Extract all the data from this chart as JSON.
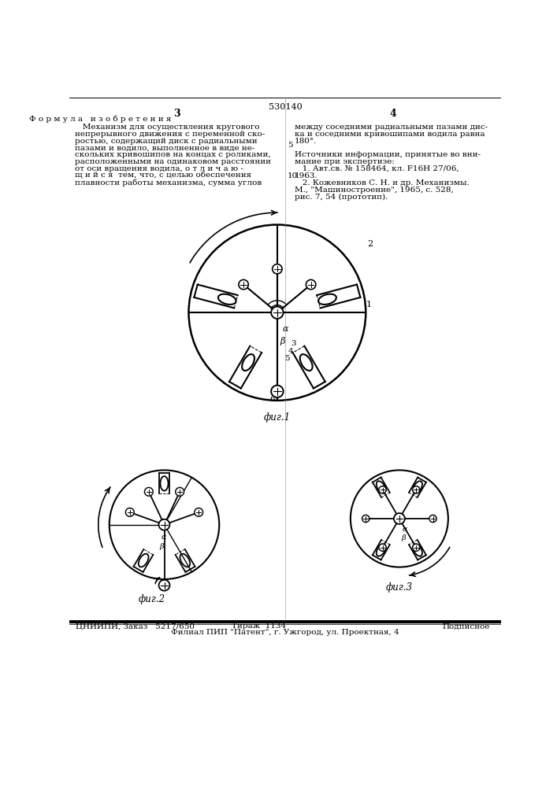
{
  "page_number": "530140",
  "left_page_num": "3",
  "right_page_num": "4",
  "left_header": "Ф о р м у л а   и з о б р е т е н и я",
  "right_body_top_line1": "между соседними радиальными пазами дис-",
  "right_body_top_line2": "ка и соседними кривошипами водила равна",
  "right_body_top_line3": "180°.",
  "right_src_header_line1": "Источники информации, принятые во вни-",
  "right_src_header_line2": "мание при экспертизе:",
  "right_src1_line1": "1. Авт.св. № 158464, кл. F16H 27/06,",
  "right_src1_line2": "1963.",
  "right_src2_line1": "2. Кожевников С. Н. и др. Механизмы.",
  "right_src2_line2": "М., \"Машиностроение\", 1965, с. 528,",
  "right_src2_line3": "рис. 7, 54 (прототип).",
  "left_body_lines": [
    "   Механизм для осуществления кругового",
    "непрерывного движения с переменной ско-",
    "ростью, содержащий диск с радиальными",
    "пазами и водило, выполненное в виде не-",
    "скольких кривошипов на концах с роликами,",
    "расположенными на одинаковом расстоянии",
    "от оси вращения водила, о т л и ч а ю -",
    "щ и й с я  тем, что, с целью обеспечения",
    "плавности работы механизма, сумма углов"
  ],
  "fig1_caption": "фиг.1",
  "fig2_caption": "фиг.2",
  "fig3_caption": "фиг.3",
  "bottom_bar_text1": "ЦНИИПИ, Заказ   5217/650",
  "bottom_bar_text2": "Тираж  1134",
  "bottom_bar_text3": "Подписное",
  "bottom_address": "Филиал ПИП \"Патент\", г. Ужгород, ул. Проектная, 4",
  "col5": "5",
  "col10": "10",
  "bg_color": "#ffffff"
}
